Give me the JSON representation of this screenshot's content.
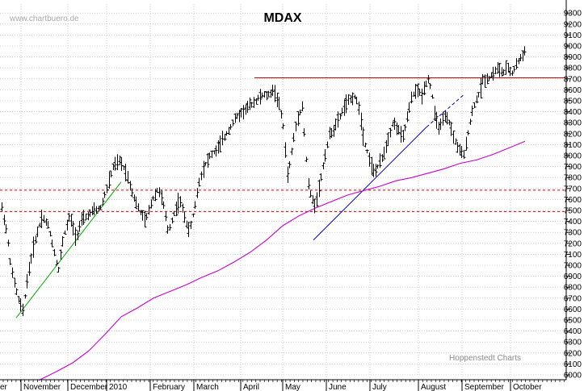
{
  "header": {
    "source": "www.chartbuero.de",
    "title": "MDAX",
    "credit": "Hoppenstedt Charts"
  },
  "chart_data": {
    "type": "ohlc",
    "title": "MDAX",
    "ylim": [
      6000,
      9300
    ],
    "y_ticks": [
      6000,
      6100,
      6200,
      6300,
      6400,
      6500,
      6600,
      6700,
      6800,
      6900,
      7000,
      7100,
      7200,
      7300,
      7400,
      7500,
      7600,
      7700,
      7800,
      7900,
      8000,
      8100,
      8200,
      8300,
      8400,
      8500,
      8600,
      8700,
      8800,
      8900,
      9000,
      9100,
      9200,
      9300
    ],
    "x_labels": [
      "er",
      "November",
      "December",
      "2010",
      "February",
      "March",
      "April",
      "May",
      "June",
      "July",
      "August",
      "September",
      "October"
    ],
    "grid": true,
    "price_path": [
      [
        0,
        7600
      ],
      [
        8,
        7300
      ],
      [
        14,
        6950
      ],
      [
        22,
        6700
      ],
      [
        28,
        6580
      ],
      [
        34,
        6900
      ],
      [
        42,
        7200
      ],
      [
        52,
        7450
      ],
      [
        60,
        7350
      ],
      [
        66,
        7150
      ],
      [
        72,
        6950
      ],
      [
        78,
        7250
      ],
      [
        86,
        7450
      ],
      [
        94,
        7250
      ],
      [
        100,
        7400
      ],
      [
        108,
        7450
      ],
      [
        116,
        7500
      ],
      [
        124,
        7520
      ],
      [
        132,
        7700
      ],
      [
        140,
        7900
      ],
      [
        148,
        7950
      ],
      [
        156,
        7850
      ],
      [
        164,
        7650
      ],
      [
        172,
        7500
      ],
      [
        180,
        7400
      ],
      [
        188,
        7600
      ],
      [
        196,
        7700
      ],
      [
        202,
        7550
      ],
      [
        208,
        7300
      ],
      [
        214,
        7450
      ],
      [
        222,
        7600
      ],
      [
        228,
        7450
      ],
      [
        234,
        7300
      ],
      [
        240,
        7500
      ],
      [
        246,
        7750
      ],
      [
        252,
        7900
      ],
      [
        260,
        8000
      ],
      [
        268,
        8050
      ],
      [
        276,
        8150
      ],
      [
        284,
        8250
      ],
      [
        292,
        8350
      ],
      [
        300,
        8400
      ],
      [
        308,
        8450
      ],
      [
        316,
        8500
      ],
      [
        324,
        8550
      ],
      [
        332,
        8550
      ],
      [
        338,
        8600
      ],
      [
        344,
        8500
      ],
      [
        350,
        8300
      ],
      [
        356,
        7800
      ],
      [
        362,
        8100
      ],
      [
        368,
        8350
      ],
      [
        374,
        8450
      ],
      [
        378,
        8050
      ],
      [
        382,
        7700
      ],
      [
        386,
        7600
      ],
      [
        390,
        7550
      ],
      [
        396,
        7750
      ],
      [
        402,
        8000
      ],
      [
        408,
        8200
      ],
      [
        414,
        8250
      ],
      [
        420,
        8350
      ],
      [
        426,
        8450
      ],
      [
        432,
        8500
      ],
      [
        438,
        8550
      ],
      [
        444,
        8450
      ],
      [
        450,
        8150
      ],
      [
        456,
        8000
      ],
      [
        462,
        7850
      ],
      [
        468,
        7900
      ],
      [
        474,
        8000
      ],
      [
        480,
        8150
      ],
      [
        486,
        8300
      ],
      [
        492,
        8250
      ],
      [
        498,
        8150
      ],
      [
        504,
        8350
      ],
      [
        510,
        8550
      ],
      [
        516,
        8600
      ],
      [
        522,
        8550
      ],
      [
        526,
        8650
      ],
      [
        530,
        8700
      ],
      [
        534,
        8600
      ],
      [
        538,
        8350
      ],
      [
        544,
        8250
      ],
      [
        550,
        8350
      ],
      [
        556,
        8300
      ],
      [
        562,
        8150
      ],
      [
        568,
        8050
      ],
      [
        574,
        8000
      ],
      [
        580,
        8250
      ],
      [
        586,
        8450
      ],
      [
        592,
        8550
      ],
      [
        598,
        8700
      ],
      [
        604,
        8700
      ],
      [
        610,
        8750
      ],
      [
        616,
        8800
      ],
      [
        622,
        8750
      ],
      [
        628,
        8800
      ],
      [
        634,
        8750
      ],
      [
        640,
        8850
      ],
      [
        646,
        8900
      ],
      [
        650,
        8980
      ]
    ],
    "moving_average": [
      [
        48,
        5950
      ],
      [
        70,
        6030
      ],
      [
        90,
        6110
      ],
      [
        110,
        6220
      ],
      [
        130,
        6370
      ],
      [
        150,
        6530
      ],
      [
        170,
        6610
      ],
      [
        190,
        6700
      ],
      [
        210,
        6760
      ],
      [
        230,
        6820
      ],
      [
        250,
        6890
      ],
      [
        270,
        6950
      ],
      [
        290,
        7030
      ],
      [
        310,
        7120
      ],
      [
        330,
        7230
      ],
      [
        350,
        7360
      ],
      [
        370,
        7450
      ],
      [
        390,
        7520
      ],
      [
        410,
        7580
      ],
      [
        430,
        7640
      ],
      [
        450,
        7680
      ],
      [
        470,
        7720
      ],
      [
        490,
        7770
      ],
      [
        510,
        7800
      ],
      [
        530,
        7840
      ],
      [
        550,
        7880
      ],
      [
        570,
        7930
      ],
      [
        590,
        7960
      ],
      [
        610,
        8010
      ],
      [
        630,
        8070
      ],
      [
        650,
        8130
      ]
    ],
    "resistance_line": {
      "value": 8710,
      "x_start": 315,
      "x_end": 700
    },
    "support_lines": [
      {
        "value": 7685,
        "x_start": 0,
        "x_end": 700
      },
      {
        "value": 7490,
        "x_start": 0,
        "x_end": 700
      }
    ],
    "trendlines": [
      {
        "color": "#00aa00",
        "x1": 20,
        "y1": 6520,
        "x2": 150,
        "y2": 7760,
        "dashed": false
      },
      {
        "color": "#0000cc",
        "x1": 388,
        "y1": 7230,
        "x2": 528,
        "y2": 8260,
        "dashed": false
      },
      {
        "color": "#0000cc",
        "x1": 528,
        "y1": 8260,
        "x2": 575,
        "y2": 8560,
        "dashed": true
      }
    ],
    "colors": {
      "bars": "#000000",
      "moving_average": "#cc00cc",
      "resistance": "#cc0000",
      "support": "#cc0000",
      "uptrend_green": "#00aa00",
      "uptrend_blue": "#0000cc",
      "grid": "#b0b0b0"
    }
  }
}
